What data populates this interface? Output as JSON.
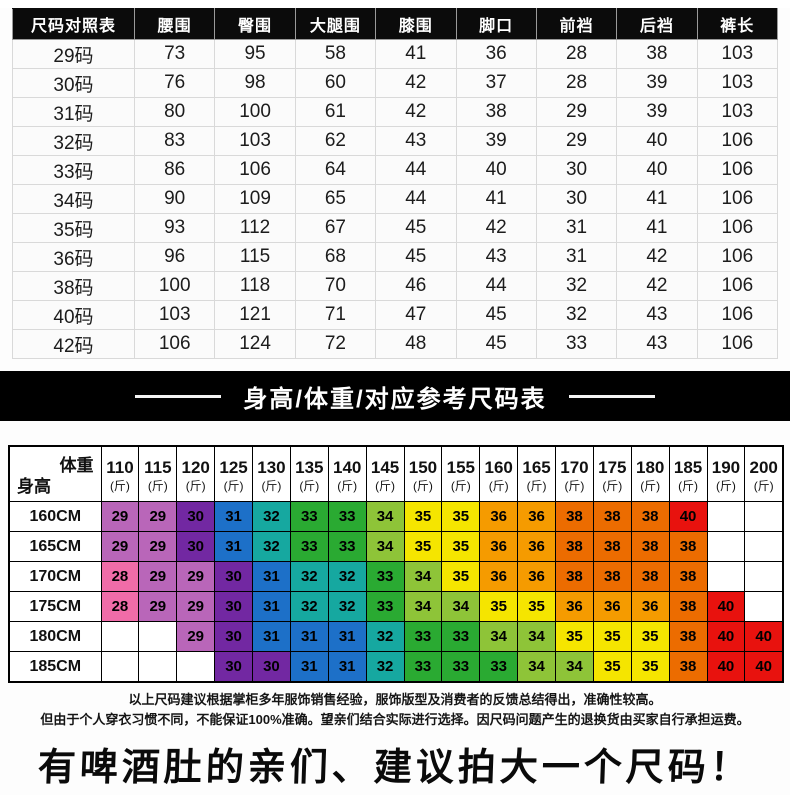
{
  "size_table": {
    "headers": [
      "尺码对照表",
      "腰围",
      "臀围",
      "大腿围",
      "膝围",
      "脚口",
      "前裆",
      "后裆",
      "裤长"
    ],
    "rows": [
      {
        "size": "29码",
        "values": [
          "73",
          "95",
          "58",
          "41",
          "36",
          "28",
          "38",
          "103"
        ]
      },
      {
        "size": "30码",
        "values": [
          "76",
          "98",
          "60",
          "42",
          "37",
          "28",
          "39",
          "103"
        ]
      },
      {
        "size": "31码",
        "values": [
          "80",
          "100",
          "61",
          "42",
          "38",
          "29",
          "39",
          "103"
        ]
      },
      {
        "size": "32码",
        "values": [
          "83",
          "103",
          "62",
          "43",
          "39",
          "29",
          "40",
          "106"
        ]
      },
      {
        "size": "33码",
        "values": [
          "86",
          "106",
          "64",
          "44",
          "40",
          "30",
          "40",
          "106"
        ]
      },
      {
        "size": "34码",
        "values": [
          "90",
          "109",
          "65",
          "44",
          "41",
          "30",
          "41",
          "106"
        ]
      },
      {
        "size": "35码",
        "values": [
          "93",
          "112",
          "67",
          "45",
          "42",
          "31",
          "41",
          "106"
        ]
      },
      {
        "size": "36码",
        "values": [
          "96",
          "115",
          "68",
          "45",
          "43",
          "31",
          "42",
          "106"
        ]
      },
      {
        "size": "38码",
        "values": [
          "100",
          "118",
          "70",
          "46",
          "44",
          "32",
          "42",
          "106"
        ]
      },
      {
        "size": "40码",
        "values": [
          "103",
          "121",
          "71",
          "47",
          "45",
          "32",
          "43",
          "106"
        ]
      },
      {
        "size": "42码",
        "values": [
          "106",
          "124",
          "72",
          "48",
          "45",
          "33",
          "43",
          "106"
        ]
      }
    ]
  },
  "banner": {
    "title": "身高/体重/对应参考尺码表",
    "background": "#000000",
    "text_color": "#ffffff"
  },
  "matrix_table": {
    "corner": {
      "top_right": "体重",
      "bottom_left": "身高"
    },
    "weight_unit": "(斤)",
    "weights": [
      "110",
      "115",
      "120",
      "125",
      "130",
      "135",
      "140",
      "145",
      "150",
      "155",
      "160",
      "165",
      "170",
      "175",
      "180",
      "185",
      "190",
      "200"
    ],
    "heights": [
      "160CM",
      "165CM",
      "170CM",
      "175CM",
      "180CM",
      "185CM"
    ],
    "cells": [
      [
        "29",
        "29",
        "30",
        "31",
        "32",
        "33",
        "33",
        "34",
        "35",
        "35",
        "36",
        "36",
        "38",
        "38",
        "38",
        "40",
        "",
        ""
      ],
      [
        "29",
        "29",
        "30",
        "31",
        "32",
        "33",
        "33",
        "34",
        "35",
        "35",
        "36",
        "36",
        "38",
        "38",
        "38",
        "38",
        "",
        ""
      ],
      [
        "28",
        "29",
        "29",
        "30",
        "31",
        "32",
        "32",
        "33",
        "34",
        "35",
        "36",
        "36",
        "38",
        "38",
        "38",
        "38",
        "",
        ""
      ],
      [
        "28",
        "29",
        "29",
        "30",
        "31",
        "32",
        "32",
        "33",
        "34",
        "34",
        "35",
        "35",
        "36",
        "36",
        "36",
        "38",
        "40",
        ""
      ],
      [
        "",
        "",
        "29",
        "30",
        "31",
        "31",
        "31",
        "32",
        "33",
        "33",
        "34",
        "34",
        "35",
        "35",
        "35",
        "38",
        "40",
        "40"
      ],
      [
        "",
        "",
        "",
        "30",
        "30",
        "31",
        "31",
        "32",
        "33",
        "33",
        "33",
        "34",
        "34",
        "35",
        "35",
        "38",
        "40",
        "40"
      ]
    ],
    "size_colors": {
      "28": "#f06ca8",
      "29": "#b966b9",
      "30": "#7228a2",
      "31": "#1d70c8",
      "32": "#16a8a0",
      "33": "#2aaa32",
      "34": "#8ec438",
      "35": "#f5e500",
      "36": "#f59b00",
      "38": "#ec6c00",
      "40": "#e8120e"
    },
    "empty_color": "#ffffff"
  },
  "disclaimer": {
    "line1": "以上尺码建议根据掌柜多年服饰销售经验，服饰版型及消费者的反馈总结得出，准确性较高。",
    "line2": "但由于个人穿衣习惯不同，不能保证100%准确。望亲们结合实际进行选择。因尺码问题产生的退换货由买家自行承担运费。"
  },
  "footer_note": {
    "text": "有啤酒肚的亲们、建议拍大一个尺码！"
  }
}
